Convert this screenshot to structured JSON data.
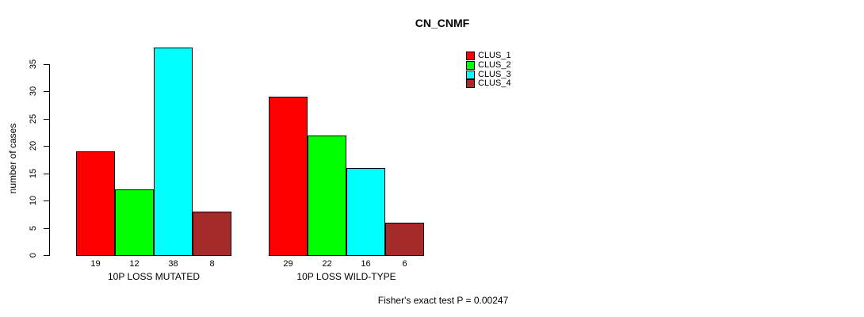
{
  "chart_data": {
    "type": "bar",
    "title": "CN_CNMF",
    "ylabel": "number of cases",
    "ylim": [
      0,
      35
    ],
    "yticks": [
      0,
      5,
      10,
      15,
      20,
      25,
      30,
      35
    ],
    "grid": false,
    "legend_position": "top-right",
    "categories": [
      "10P LOSS MUTATED",
      "10P LOSS WILD-TYPE"
    ],
    "series": [
      {
        "name": "CLUS_1",
        "color": "#ff0000",
        "values": [
          19,
          29
        ]
      },
      {
        "name": "CLUS_2",
        "color": "#00ff00",
        "values": [
          12,
          22
        ]
      },
      {
        "name": "CLUS_3",
        "color": "#00ffff",
        "values": [
          38,
          16
        ]
      },
      {
        "name": "CLUS_4",
        "color": "#a52a2a",
        "values": [
          8,
          6
        ]
      }
    ],
    "bar_value_labels": [
      [
        "19",
        "12",
        "38",
        "8"
      ],
      [
        "29",
        "22",
        "16",
        "6"
      ]
    ],
    "annotation": "Fisher's exact test P = 0.00247"
  }
}
